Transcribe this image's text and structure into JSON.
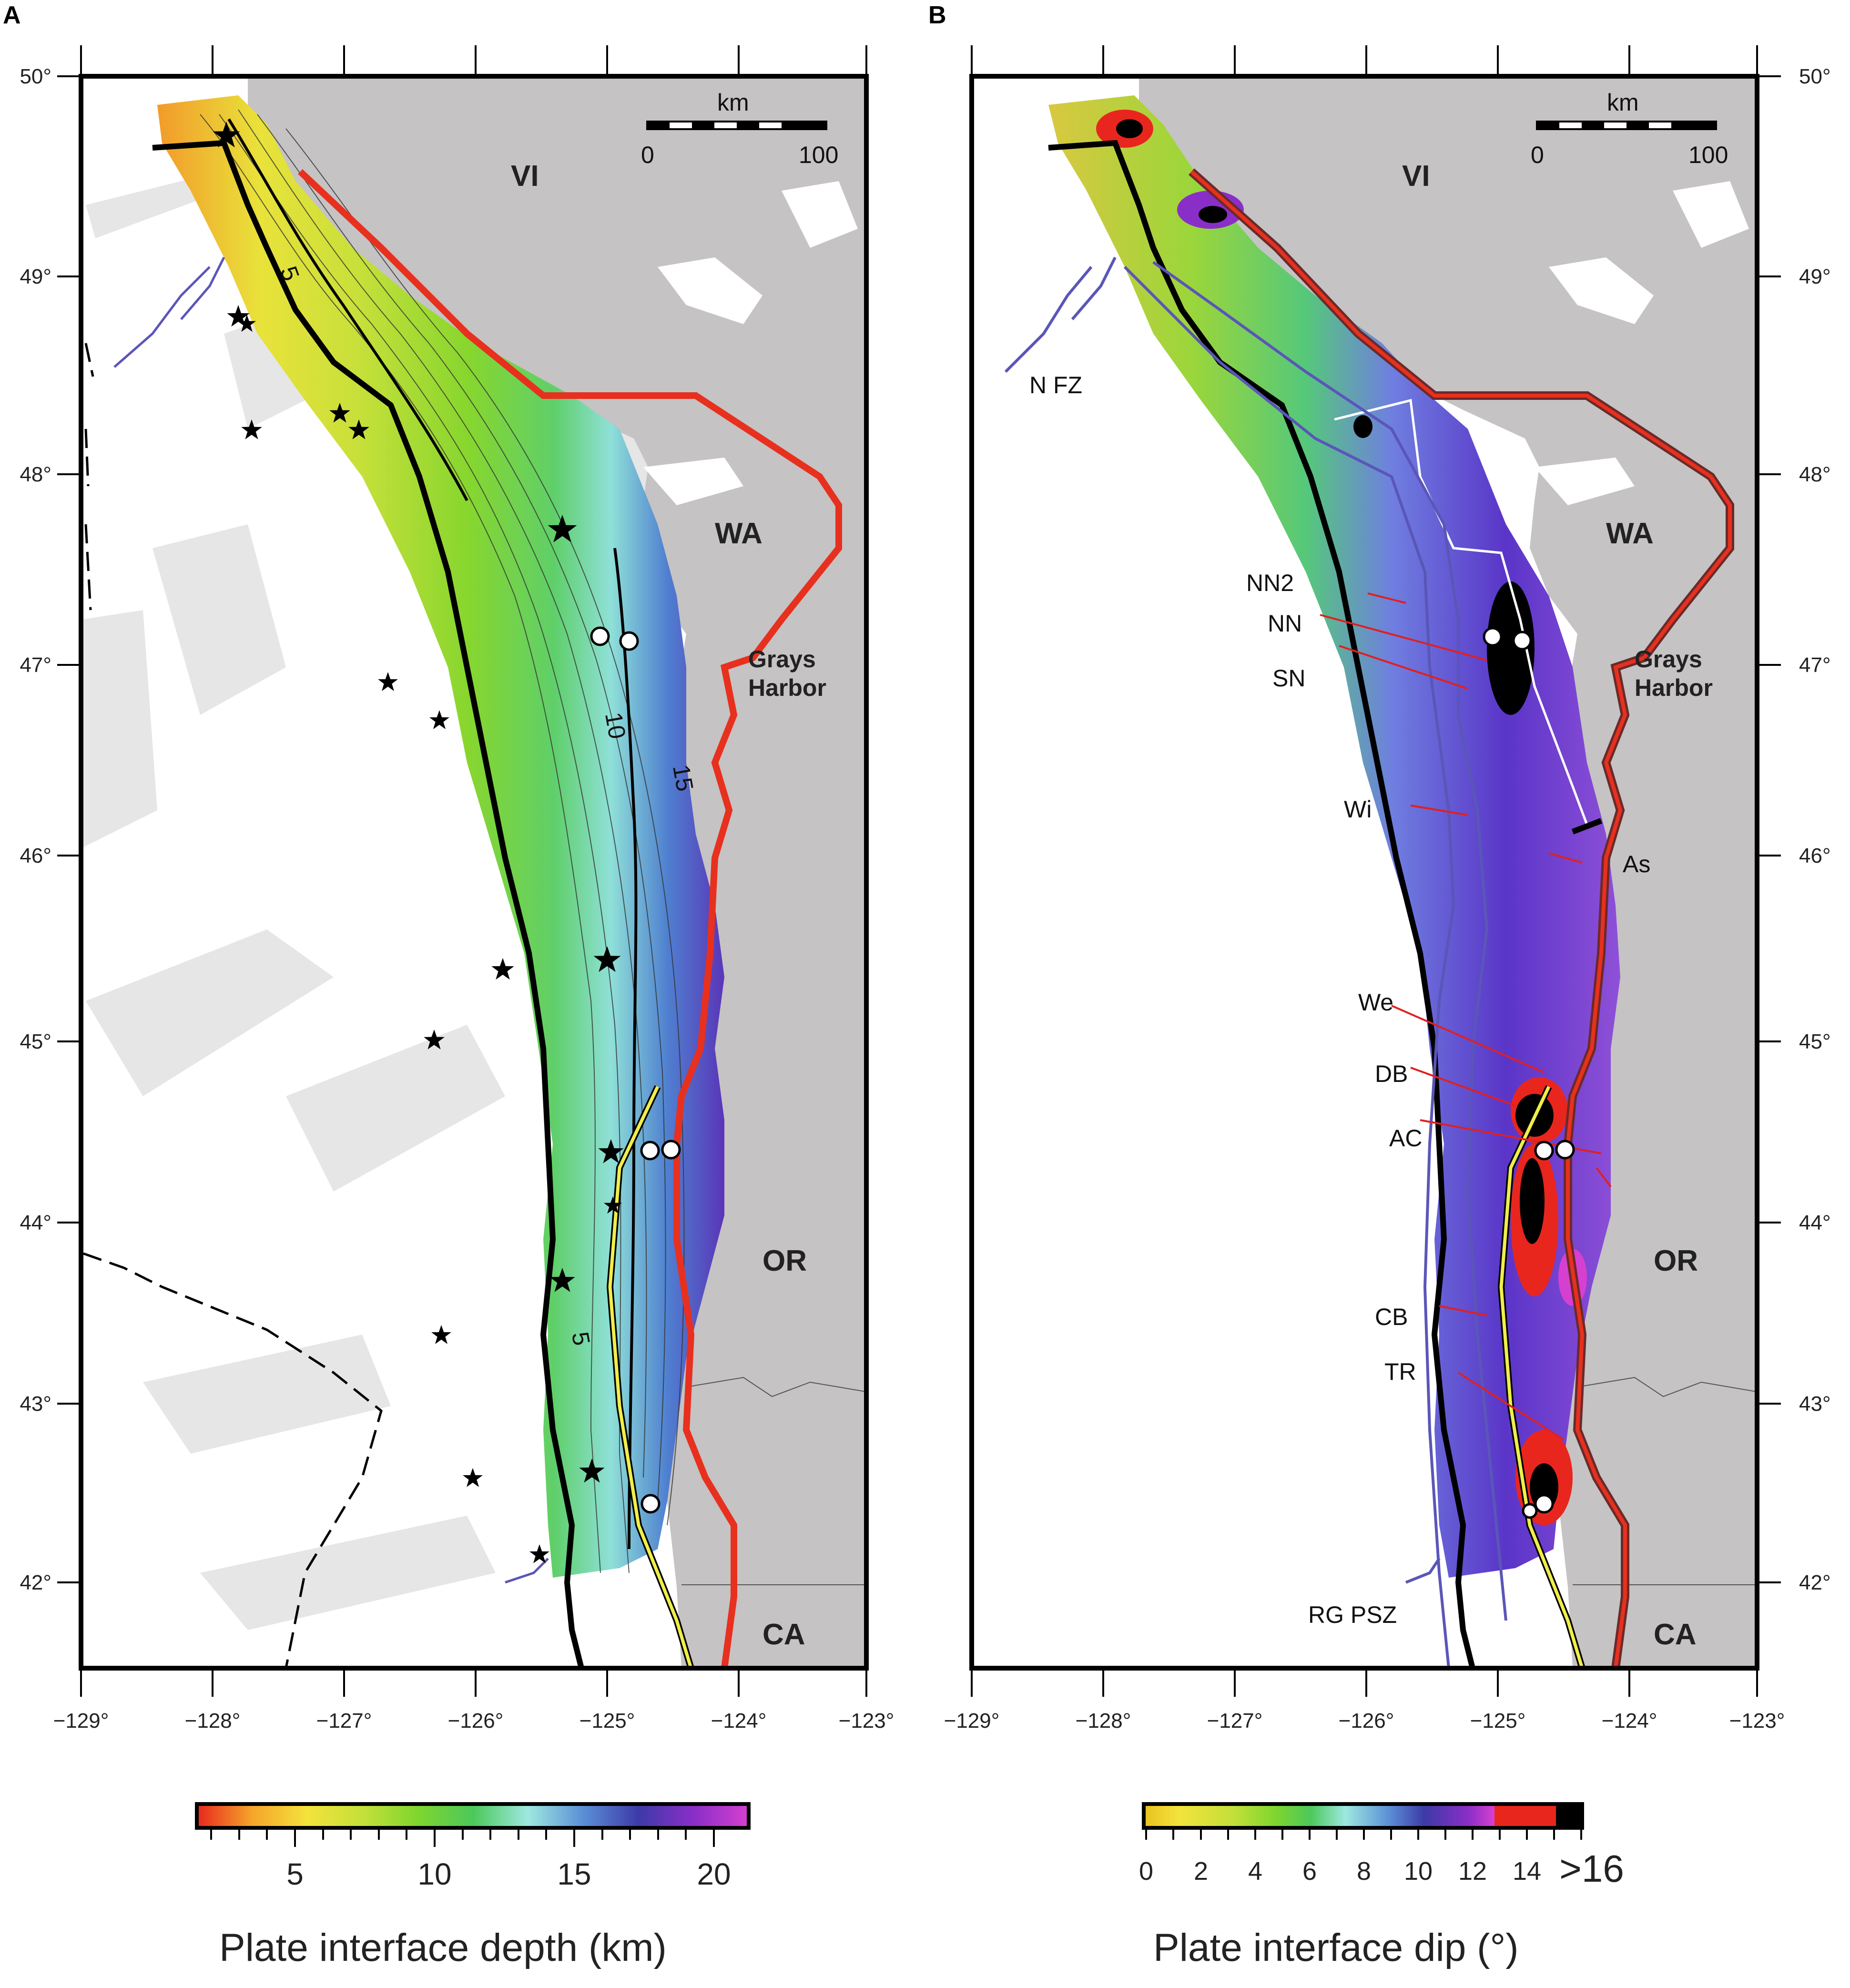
{
  "panels": [
    {
      "letter": "A",
      "colorbar_title": "Plate interface depth (km)",
      "colorbar_ticks": [
        "5",
        "10",
        "15",
        "20"
      ]
    },
    {
      "letter": "B",
      "colorbar_title": "Plate interface dip (°)",
      "colorbar_ticks": [
        "0",
        "2",
        "4",
        "6",
        "8",
        "10",
        "12",
        "14",
        ">16"
      ]
    }
  ],
  "lat_labels": [
    "50°",
    "49°",
    "48°",
    "47°",
    "46°",
    "45°",
    "44°",
    "43°",
    "42°"
  ],
  "lon_labels": [
    "−129°",
    "−128°",
    "−127°",
    "−126°",
    "−125°",
    "−124°",
    "−123°"
  ],
  "scale_bar": {
    "unit": "km",
    "min": "0",
    "max": "100"
  },
  "regions": {
    "vi": "VI",
    "wa": "WA",
    "or": "OR",
    "ca": "CA",
    "grays": "Grays",
    "harbor": "Harbor"
  },
  "contour_labels": [
    "5",
    "10",
    "15",
    "5"
  ],
  "feature_labels": [
    "N FZ",
    "NN2",
    "NN",
    "SN",
    "Wi",
    "As",
    "We",
    "DB",
    "AC",
    "CB",
    "TR",
    "RG PSZ"
  ],
  "colors": {
    "land": "#c5c3c3",
    "ocean": "#ffffff",
    "deformation_zone": "#e6e6e6",
    "trench_line": "#000000",
    "coast_line": "#e8301e",
    "fault_line": "#5a56b8",
    "inland_line": "#f0ee4a",
    "structure_line": "#e02020",
    "depth_scale": [
      "#e8261e",
      "#f5a52a",
      "#f4e23c",
      "#c5e03a",
      "#7fd62e",
      "#4cc85a",
      "#9ee8e0",
      "#5b8fd6",
      "#3d3aa8",
      "#8a2ec8",
      "#d640d0"
    ],
    "dip_scale": [
      "#e8c21e",
      "#f4e23c",
      "#c5e03a",
      "#7fd62e",
      "#4cc85a",
      "#9ee8e0",
      "#5b8fd6",
      "#3d3aa8",
      "#8a2ec8",
      "#d640d0",
      "#e8261e",
      "#000000"
    ]
  }
}
